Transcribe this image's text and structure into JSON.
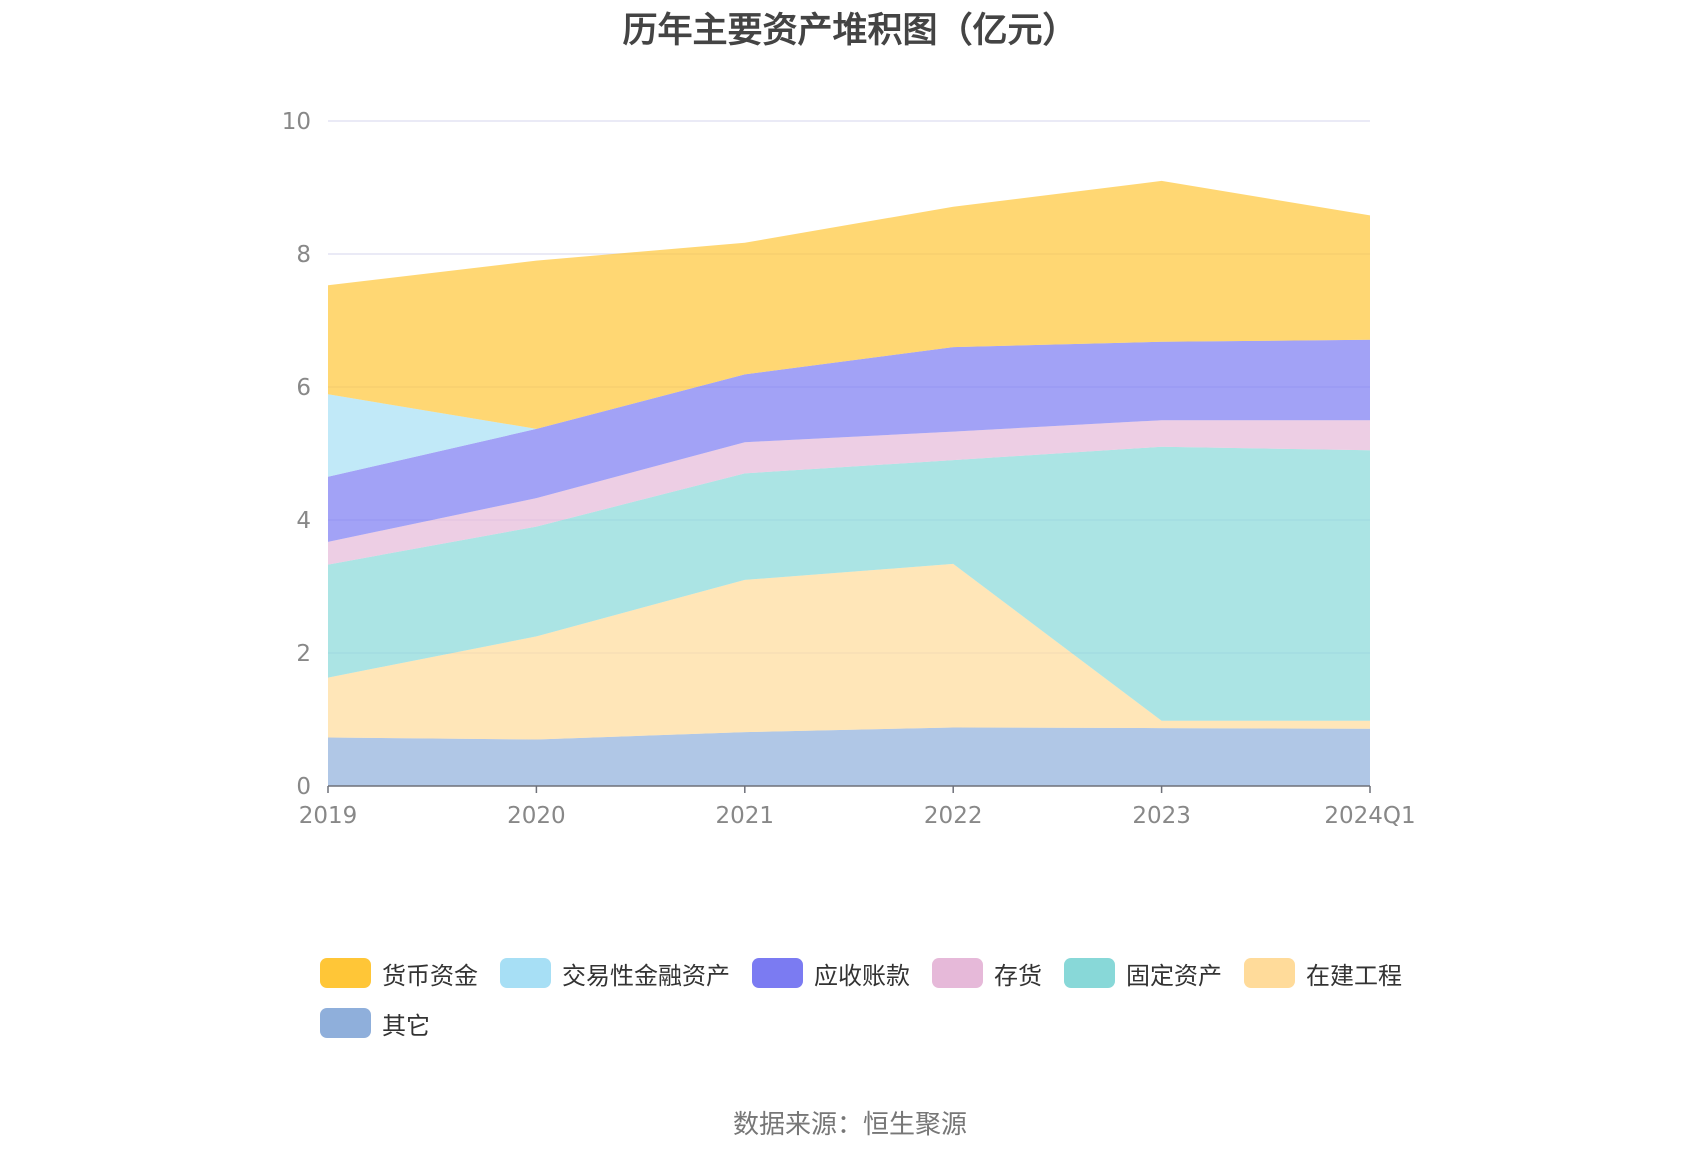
{
  "chart_data": {
    "type": "area",
    "stacked": true,
    "title": "历年主要资产堆积图（亿元）",
    "categories": [
      "2019",
      "2020",
      "2021",
      "2022",
      "2023",
      "2024Q1"
    ],
    "ylim": [
      0,
      10
    ],
    "yticks": [
      "0",
      "2",
      "4",
      "6",
      "8",
      "10"
    ],
    "grid": true,
    "legend_position": "bottom",
    "series": [
      {
        "name": "其它",
        "color": "#8FAFDB",
        "values": [
          0.73,
          0.7,
          0.81,
          0.88,
          0.87,
          0.86
        ]
      },
      {
        "name": "在建工程",
        "color": "#FFDB9A",
        "values": [
          0.9,
          1.55,
          2.29,
          2.46,
          0.11,
          0.12
        ]
      },
      {
        "name": "固定资产",
        "color": "#88D8D8",
        "values": [
          1.7,
          1.65,
          1.6,
          1.56,
          4.12,
          4.07
        ]
      },
      {
        "name": "存货",
        "color": "#E6B9D9",
        "values": [
          0.34,
          0.43,
          0.47,
          0.43,
          0.4,
          0.45
        ]
      },
      {
        "name": "应收账款",
        "color": "#7B7BF2",
        "values": [
          0.98,
          1.04,
          1.02,
          1.27,
          1.18,
          1.21
        ]
      },
      {
        "name": "交易性金融资产",
        "color": "#A7DFF5",
        "values": [
          1.24,
          0.0,
          0.0,
          0.0,
          0.0,
          0.0
        ]
      },
      {
        "name": "货币资金",
        "color": "#FFC637",
        "values": [
          1.64,
          2.53,
          1.98,
          2.11,
          2.42,
          1.87
        ]
      }
    ],
    "legend_order": [
      "货币资金",
      "交易性金融资产",
      "应收账款",
      "存货",
      "固定资产",
      "在建工程",
      "其它"
    ]
  },
  "source_text": "数据来源：恒生聚源"
}
